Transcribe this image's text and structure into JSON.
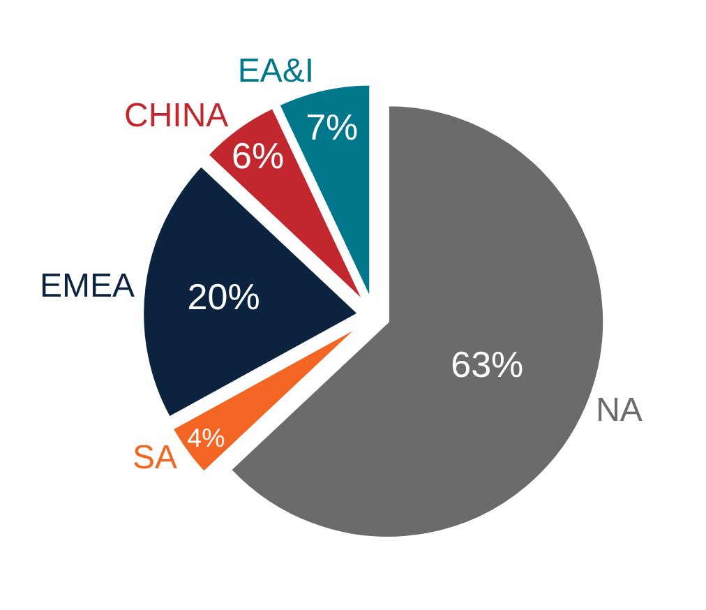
{
  "chart_data": {
    "type": "pie",
    "categories": [
      "NA",
      "SA",
      "EMEA",
      "CHINA",
      "EA&I"
    ],
    "values": [
      63,
      4,
      20,
      6,
      7
    ],
    "value_labels": [
      "63%",
      "4%",
      "20%",
      "6%",
      "7%"
    ],
    "colors": [
      "#6b6b6b",
      "#f26522",
      "#0c2340",
      "#c1272d",
      "#00778b"
    ],
    "legend": false
  }
}
